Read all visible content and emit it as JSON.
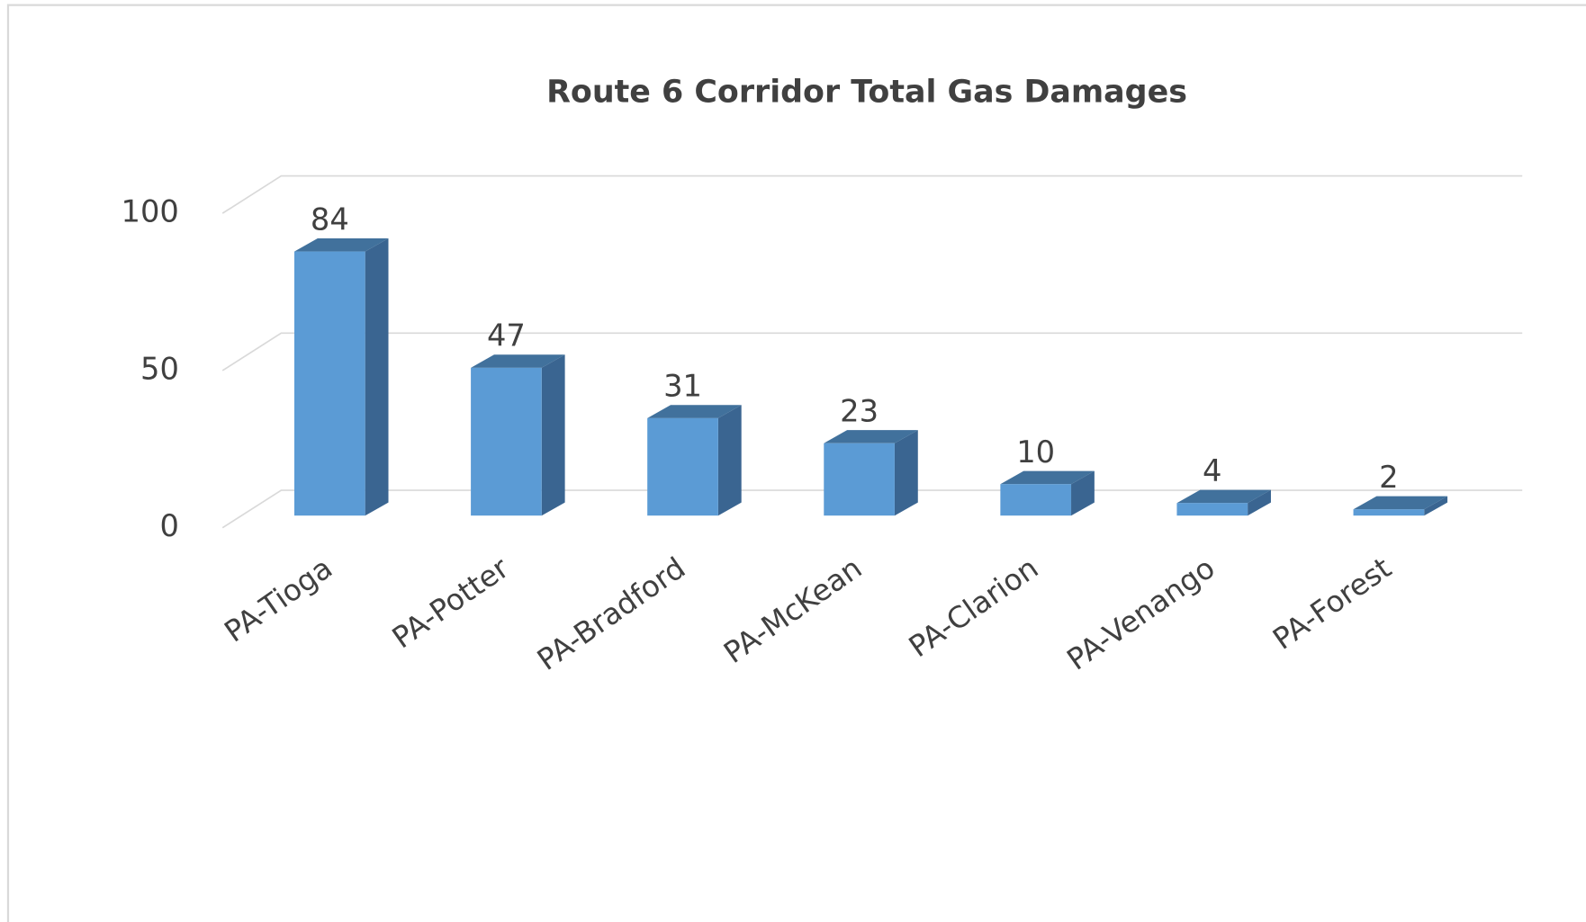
{
  "chart_data": {
    "type": "bar3d",
    "title": "Route 6 Corridor Total Gas Damages",
    "categories": [
      "PA-Tioga",
      "PA-Potter",
      "PA-Bradford",
      "PA-McKean",
      "PA-Clarion",
      "PA-Venango",
      "PA-Forest"
    ],
    "values": [
      84,
      47,
      31,
      23,
      10,
      4,
      2
    ],
    "color": "#5b9bd5",
    "ylim": [
      0,
      100
    ],
    "yticks": [
      0,
      50,
      100
    ],
    "grid": true
  }
}
